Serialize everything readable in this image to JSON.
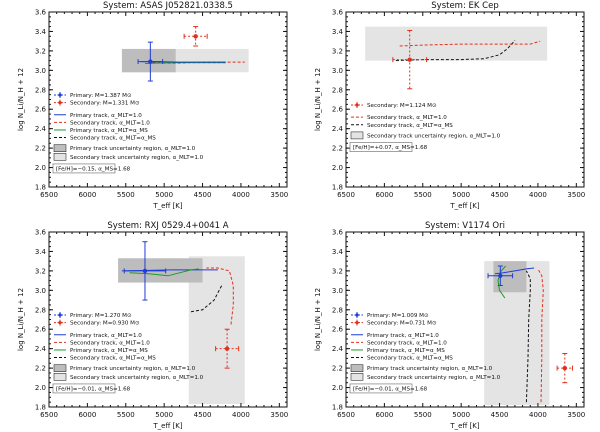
{
  "x_axis_label": "T_eff [K]",
  "y_axis_label": "log N_Li/N_H + 12",
  "chart_data": [
    {
      "type": "line",
      "title": "System: ASAS J052821.0338.5",
      "xlim": [
        6500,
        3400
      ],
      "ylim": [
        1.8,
        3.6
      ],
      "xticks": [
        6500,
        6000,
        5500,
        5000,
        4500,
        4000,
        3500
      ],
      "yticks": [
        1.8,
        2.0,
        2.2,
        2.4,
        2.6,
        2.8,
        3.0,
        3.2,
        3.4,
        3.6
      ],
      "regions": [
        {
          "kind": "secondary",
          "x0": 5550,
          "x1": 3900,
          "y0": 2.98,
          "y1": 3.22
        },
        {
          "kind": "primary",
          "x0": 5550,
          "x1": 4850,
          "y0": 2.98,
          "y1": 3.22
        }
      ],
      "series": [
        {
          "name": "Secondary track, α_MLT=1.0",
          "style": "red-dash",
          "x": [
            5150,
            4950,
            4700,
            4400,
            4150,
            3950
          ],
          "y": [
            3.08,
            3.08,
            3.08,
            3.085,
            3.085,
            3.085
          ]
        },
        {
          "name": "Secondary track, α_MLT=α_MS",
          "style": "black-dash",
          "x": [
            5150,
            4900,
            4650,
            4400,
            4200
          ],
          "y": [
            3.075,
            3.075,
            3.08,
            3.08,
            3.08
          ]
        },
        {
          "name": "Primary track, α_MLT=α_MS",
          "style": "green",
          "x": [
            5250,
            5050,
            4800,
            4500,
            4200
          ],
          "y": [
            3.07,
            3.075,
            3.08,
            3.08,
            3.08
          ]
        },
        {
          "name": "Primary track, α_MLT=1.0",
          "style": "blue",
          "x": [
            5300,
            5100,
            4800,
            4500,
            4200
          ],
          "y": [
            3.09,
            3.09,
            3.085,
            3.085,
            3.085
          ]
        }
      ],
      "stars": [
        {
          "name": "Primary",
          "x": 5180,
          "y": 3.09,
          "xerr": 160,
          "yerr": 0.2,
          "color": "#1f3dd6"
        },
        {
          "name": "Secondary",
          "x": 4590,
          "y": 3.35,
          "xerr": 150,
          "yerr": 0.1,
          "color": "#e0311c"
        }
      ],
      "legend": {
        "stars": [
          {
            "text": "Primary: M=1.387 M⊙",
            "color": "#1f3dd6"
          },
          {
            "text": "Secondary: M=1.331 M⊙",
            "color": "#e0311c"
          }
        ],
        "tracks": [
          {
            "text": "Primary track, α_MLT=1.0",
            "style": "blue"
          },
          {
            "text": "Secondary track, α_MLT=1.0",
            "style": "red-dash"
          },
          {
            "text": "Primary track, α_MLT=α_MS",
            "style": "green"
          },
          {
            "text": "Secondary track, α_MLT=α_MS",
            "style": "black-dash"
          }
        ],
        "regions": [
          {
            "text": "Primary track uncertainty region, α_MLT=1.0",
            "kind": "primary"
          },
          {
            "text": "Secondary track uncertainty region, α_MLT=1.0",
            "kind": "secondary"
          }
        ],
        "note": "[Fe/H]=−0.15, α_MS=1.68"
      }
    },
    {
      "type": "line",
      "title": "System: EK Cep",
      "xlim": [
        6500,
        3400
      ],
      "ylim": [
        1.8,
        3.6
      ],
      "xticks": [
        6500,
        6000,
        5500,
        5000,
        4500,
        4000,
        3500
      ],
      "yticks": [
        1.8,
        2.0,
        2.2,
        2.4,
        2.6,
        2.8,
        3.0,
        3.2,
        3.4,
        3.6
      ],
      "regions": [
        {
          "kind": "secondary",
          "x0": 6250,
          "x1": 3880,
          "y0": 3.1,
          "y1": 3.45
        }
      ],
      "series": [
        {
          "name": "Secondary track, α_MLT=1.0",
          "style": "red-dash",
          "x": [
            5800,
            5500,
            5000,
            4500,
            4100,
            3970
          ],
          "y": [
            3.25,
            3.26,
            3.27,
            3.27,
            3.27,
            3.3
          ]
        },
        {
          "name": "Secondary track, α_MLT=α_MS",
          "style": "black-dash",
          "x": [
            5850,
            5500,
            5000,
            4700,
            4500,
            4400,
            4330,
            4300
          ],
          "y": [
            3.1,
            3.11,
            3.11,
            3.12,
            3.16,
            3.22,
            3.28,
            3.31
          ]
        }
      ],
      "stars": [
        {
          "name": "Secondary",
          "x": 5670,
          "y": 3.11,
          "xerr": 220,
          "yerr": 0.3,
          "color": "#e0311c"
        }
      ],
      "legend": {
        "stars": [
          {
            "text": "Secondary: M=1.124 M⊙",
            "color": "#e0311c"
          }
        ],
        "tracks": [
          {
            "text": "Secondary track, α_MLT=1.0",
            "style": "red-dash"
          },
          {
            "text": "Secondary track, α_MLT=α_MS",
            "style": "black-dash"
          }
        ],
        "regions": [
          {
            "text": "Secondary track uncertainty region, α_MLT=1.0",
            "kind": "secondary"
          }
        ],
        "note": "[Fe/H]=+0.07, α_MS=1.68"
      }
    },
    {
      "type": "line",
      "title": "System: RXJ 0529.4+0041 A",
      "xlim": [
        6500,
        3400
      ],
      "ylim": [
        1.8,
        3.6
      ],
      "xticks": [
        6500,
        6000,
        5500,
        5000,
        4500,
        4000,
        3500
      ],
      "yticks": [
        1.8,
        2.0,
        2.2,
        2.4,
        2.6,
        2.8,
        3.0,
        3.2,
        3.4,
        3.6
      ],
      "regions": [
        {
          "kind": "secondary",
          "x0": 4680,
          "x1": 3950,
          "y0": 1.83,
          "y1": 3.35
        },
        {
          "kind": "primary",
          "x0": 5600,
          "x1": 4500,
          "y0": 3.08,
          "y1": 3.33
        }
      ],
      "series": [
        {
          "name": "Primary track, α_MLT=1.0",
          "style": "blue",
          "x": [
            5550,
            5200,
            4900,
            4600,
            4300
          ],
          "y": [
            3.2,
            3.205,
            3.21,
            3.21,
            3.21
          ]
        },
        {
          "name": "Primary track, α_MLT=α_MS",
          "style": "green",
          "x": [
            5450,
            5200,
            4950,
            4800,
            4650,
            4550
          ],
          "y": [
            3.18,
            3.17,
            3.15,
            3.18,
            3.21,
            3.22
          ]
        },
        {
          "name": "Secondary track, α_MLT=α_MS",
          "style": "black-dash",
          "x": [
            4650,
            4500,
            4350,
            4250
          ],
          "y": [
            2.78,
            2.8,
            2.9,
            3.05
          ]
        },
        {
          "name": "Secondary track, α_MLT=1.0",
          "style": "red-dash",
          "x": [
            4130,
            4100,
            4100,
            4150,
            4300,
            4450
          ],
          "y": [
            2.65,
            2.85,
            3.05,
            3.2,
            3.23,
            3.23
          ]
        }
      ],
      "stars": [
        {
          "name": "Primary",
          "x": 5250,
          "y": 3.2,
          "xerr": 270,
          "yerr": 0.3,
          "color": "#1f3dd6"
        },
        {
          "name": "Secondary",
          "x": 4180,
          "y": 2.4,
          "xerr": 150,
          "yerr": 0.2,
          "color": "#e0311c"
        }
      ],
      "legend": {
        "stars": [
          {
            "text": "Primary: M=1.270 M⊙",
            "color": "#1f3dd6"
          },
          {
            "text": "Secondary: M=0.930 M⊙",
            "color": "#e0311c"
          }
        ],
        "tracks": [
          {
            "text": "Primary track, α_MLT=1.0",
            "style": "blue"
          },
          {
            "text": "Secondary track, α_MLT=1.0",
            "style": "red-dash"
          },
          {
            "text": "Primary track, α_MLT=α_MS",
            "style": "green"
          },
          {
            "text": "Secondary track, α_MLT=α_MS",
            "style": "black-dash"
          }
        ],
        "regions": [
          {
            "text": "Primary track uncertainty region, α_MLT=1.0",
            "kind": "primary"
          },
          {
            "text": "Secondary track uncertainty region, α_MLT=1.0",
            "kind": "secondary"
          }
        ],
        "note": "[Fe/H]=−0.01, α_MS=1.68"
      }
    },
    {
      "type": "line",
      "title": "System: V1174 Ori",
      "xlim": [
        6500,
        3400
      ],
      "ylim": [
        1.8,
        3.6
      ],
      "xticks": [
        6500,
        6000,
        5500,
        5000,
        4500,
        4000,
        3500
      ],
      "yticks": [
        1.8,
        2.0,
        2.2,
        2.4,
        2.6,
        2.8,
        3.0,
        3.2,
        3.4,
        3.6
      ],
      "regions": [
        {
          "kind": "secondary",
          "x0": 4700,
          "x1": 3850,
          "y0": 1.82,
          "y1": 3.3
        },
        {
          "kind": "primary",
          "x0": 4580,
          "x1": 4150,
          "y0": 2.98,
          "y1": 3.3
        }
      ],
      "series": [
        {
          "name": "Primary track, α_MLT=1.0",
          "style": "blue",
          "x": [
            4560,
            4450,
            4300,
            4150,
            4050
          ],
          "y": [
            3.17,
            3.18,
            3.2,
            3.22,
            3.23
          ]
        },
        {
          "name": "Primary track, α_MLT=α_MS",
          "style": "green",
          "x": [
            4430,
            4500,
            4520,
            4480,
            4420
          ],
          "y": [
            2.92,
            3.0,
            3.1,
            3.2,
            3.25
          ]
        },
        {
          "name": "Secondary track, α_MLT=α_MS",
          "style": "black-dash",
          "x": [
            4150,
            4130,
            4120,
            4100,
            4100,
            4150
          ],
          "y": [
            1.85,
            2.3,
            2.7,
            3.0,
            3.12,
            3.2
          ]
        },
        {
          "name": "Secondary track, α_MLT=1.0",
          "style": "red-dash",
          "x": [
            3960,
            3950,
            3950,
            3930,
            3950,
            4000
          ],
          "y": [
            1.85,
            2.3,
            2.7,
            3.0,
            3.15,
            3.22
          ]
        }
      ],
      "stars": [
        {
          "name": "Primary",
          "x": 4490,
          "y": 3.15,
          "xerr": 160,
          "yerr": 0.1,
          "color": "#1f3dd6"
        },
        {
          "name": "Secondary",
          "x": 3650,
          "y": 2.2,
          "xerr": 100,
          "yerr": 0.15,
          "color": "#e0311c"
        }
      ],
      "legend": {
        "stars": [
          {
            "text": "Primary: M=1.009 M⊙",
            "color": "#1f3dd6"
          },
          {
            "text": "Secondary: M=0.731 M⊙",
            "color": "#e0311c"
          }
        ],
        "tracks": [
          {
            "text": "Primary track, α_MLT=1.0",
            "style": "blue"
          },
          {
            "text": "Secondary track, α_MLT=1.0",
            "style": "red-dash"
          },
          {
            "text": "Primary track, α_MLT=α_MS",
            "style": "green"
          },
          {
            "text": "Secondary track, α_MLT=α_MS",
            "style": "black-dash"
          }
        ],
        "regions": [
          {
            "text": "Primary track uncertainty region, α_MLT=1.0",
            "kind": "primary"
          },
          {
            "text": "Secondary track uncertainty region, α_MLT=1.0",
            "kind": "secondary"
          }
        ],
        "note": "[Fe/H]=−0.01, α_MS=1.68"
      }
    }
  ]
}
